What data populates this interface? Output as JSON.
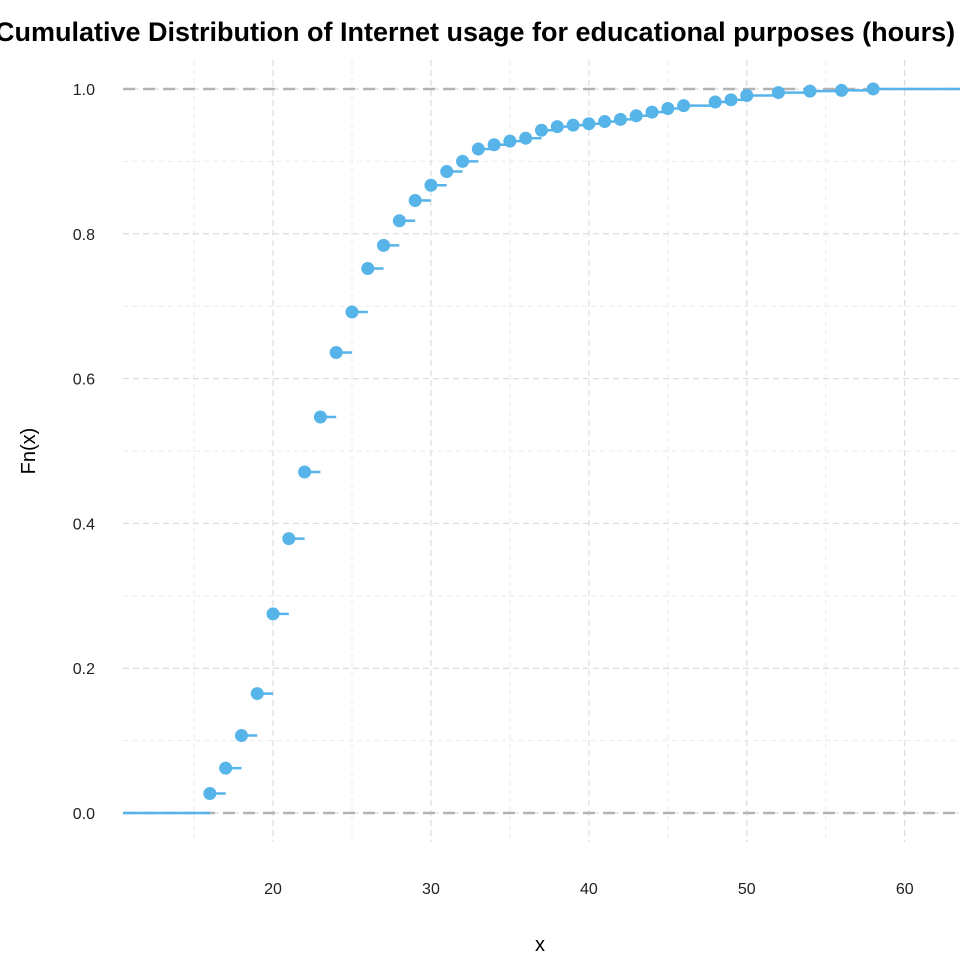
{
  "chart_data": {
    "type": "step",
    "title": "Cumulative Distribution of Internet usage for educational purposes (hours)",
    "xlabel": "x",
    "ylabel": "Fn(x)",
    "xlim": [
      10.5,
      63.5
    ],
    "ylim": [
      -0.04,
      1.04
    ],
    "xticks": [
      20,
      30,
      40,
      50,
      60
    ],
    "yticks": [
      0.0,
      0.2,
      0.4,
      0.6,
      0.8,
      1.0
    ],
    "ytick_labels": [
      "0.0",
      "0.2",
      "0.4",
      "0.6",
      "0.8",
      "1.0"
    ],
    "grid": true,
    "reference_lines_y": [
      0,
      1
    ],
    "series": [
      {
        "color": "#56B4E9",
        "x": [
          16,
          17,
          18,
          19,
          20,
          21,
          22,
          23,
          24,
          25,
          26,
          27,
          28,
          29,
          30,
          31,
          32,
          33,
          34,
          35,
          36,
          37,
          38,
          39,
          40,
          41,
          42,
          43,
          44,
          45,
          46,
          48,
          49,
          50,
          52,
          54,
          56,
          58
        ],
        "y": [
          0.027,
          0.062,
          0.107,
          0.165,
          0.275,
          0.379,
          0.471,
          0.547,
          0.636,
          0.692,
          0.752,
          0.784,
          0.818,
          0.846,
          0.867,
          0.886,
          0.9,
          0.917,
          0.923,
          0.928,
          0.932,
          0.943,
          0.948,
          0.95,
          0.952,
          0.955,
          0.958,
          0.963,
          0.968,
          0.973,
          0.977,
          0.982,
          0.985,
          0.991,
          0.995,
          0.997,
          0.998,
          1.0
        ]
      }
    ]
  }
}
